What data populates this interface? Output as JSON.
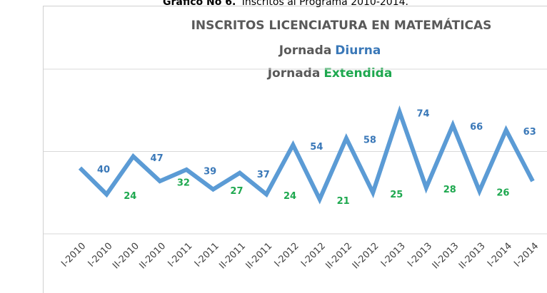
{
  "chart_data": {
    "type": "line",
    "caption_bold": "Gráfico No 6.",
    "caption": "Inscritos al Programa 2010-2014.",
    "title": "INSCRITOS  LICENCIATURA EN MATEMÁTICAS",
    "legend": [
      {
        "prefix": "Jornada",
        "name": "Diurna",
        "color": "#3a78b8"
      },
      {
        "prefix": "Jornada",
        "name": "Extendida",
        "color": "#1ea84f"
      }
    ],
    "categories": [
      "I-2010",
      "I-2010",
      "II-2010",
      "II-2010",
      "I-2011",
      "I-2011",
      "II-2011",
      "II-2011",
      "I-2012",
      "I-2012",
      "II-2012",
      "II-2012",
      "I-2013",
      "I-2013",
      "II-2013",
      "II-2013",
      "I-2014",
      "I-2014"
    ],
    "series": [
      {
        "name": "Inscritos",
        "color": "#5b9bd5",
        "values": [
          40,
          24,
          47,
          32,
          39,
          27,
          37,
          24,
          54,
          21,
          58,
          25,
          74,
          28,
          66,
          26,
          63,
          32
        ]
      }
    ],
    "ylim": [
      0,
      100
    ],
    "yticks": [
      0,
      50,
      100
    ],
    "grid": true
  }
}
